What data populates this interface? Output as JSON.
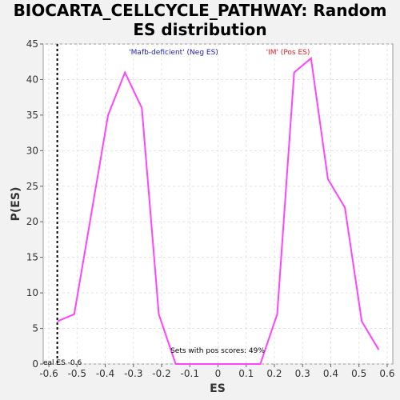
{
  "chart_data": {
    "type": "line",
    "title": "BIOCARTA_CELLCYCLE_PATHWAY: Random ES distribution",
    "title_lines": [
      "BIOCARTA_CELLCYCLE_PATHWAY: Random",
      "ES distribution"
    ],
    "xlabel": "ES",
    "ylabel": "P(ES)",
    "xlim": [
      -0.62,
      0.62
    ],
    "ylim": [
      0,
      45
    ],
    "x_ticks": [
      -0.6,
      -0.5,
      -0.4,
      -0.3,
      -0.2,
      -0.1,
      0.0,
      0.1,
      0.2,
      0.3,
      0.4,
      0.5,
      0.6
    ],
    "x_tick_labels": [
      "-0.6",
      "-0.5",
      "-0.4",
      "-0.3",
      "-0.2",
      "-0.1",
      "0",
      "0.1",
      "0.2",
      "0.3",
      "0.4",
      "0.5",
      "0.6"
    ],
    "y_ticks": [
      0,
      5,
      10,
      15,
      20,
      25,
      30,
      35,
      40,
      45
    ],
    "y_tick_labels": [
      "0",
      "5",
      "10",
      "15",
      "20",
      "25",
      "30",
      "35",
      "40",
      "45"
    ],
    "grid": true,
    "series": [
      {
        "color": "#ff44ff",
        "x": [
          -0.57,
          -0.51,
          -0.39,
          -0.33,
          -0.27,
          -0.21,
          -0.15,
          -0.09,
          -0.03,
          0.03,
          0.09,
          0.15,
          0.21,
          0.27,
          0.33,
          0.39,
          0.45,
          0.51,
          0.57
        ],
        "y": [
          6,
          7,
          35,
          41,
          36,
          7,
          0,
          0,
          0,
          0,
          0,
          0,
          7,
          41,
          43,
          26,
          22,
          6,
          2
        ]
      }
    ],
    "real_es": {
      "x": -0.57,
      "label": "eal ES -0.6"
    },
    "annotations": {
      "neg": {
        "text": "'Mafb-deficient' (Neg ES)",
        "color": "#2222bb"
      },
      "pos": {
        "text": "'IM' (Pos ES)",
        "color": "#dd2222"
      },
      "bottom": {
        "text": "Sets with pos scores: 49%",
        "color": "#000000"
      }
    }
  }
}
